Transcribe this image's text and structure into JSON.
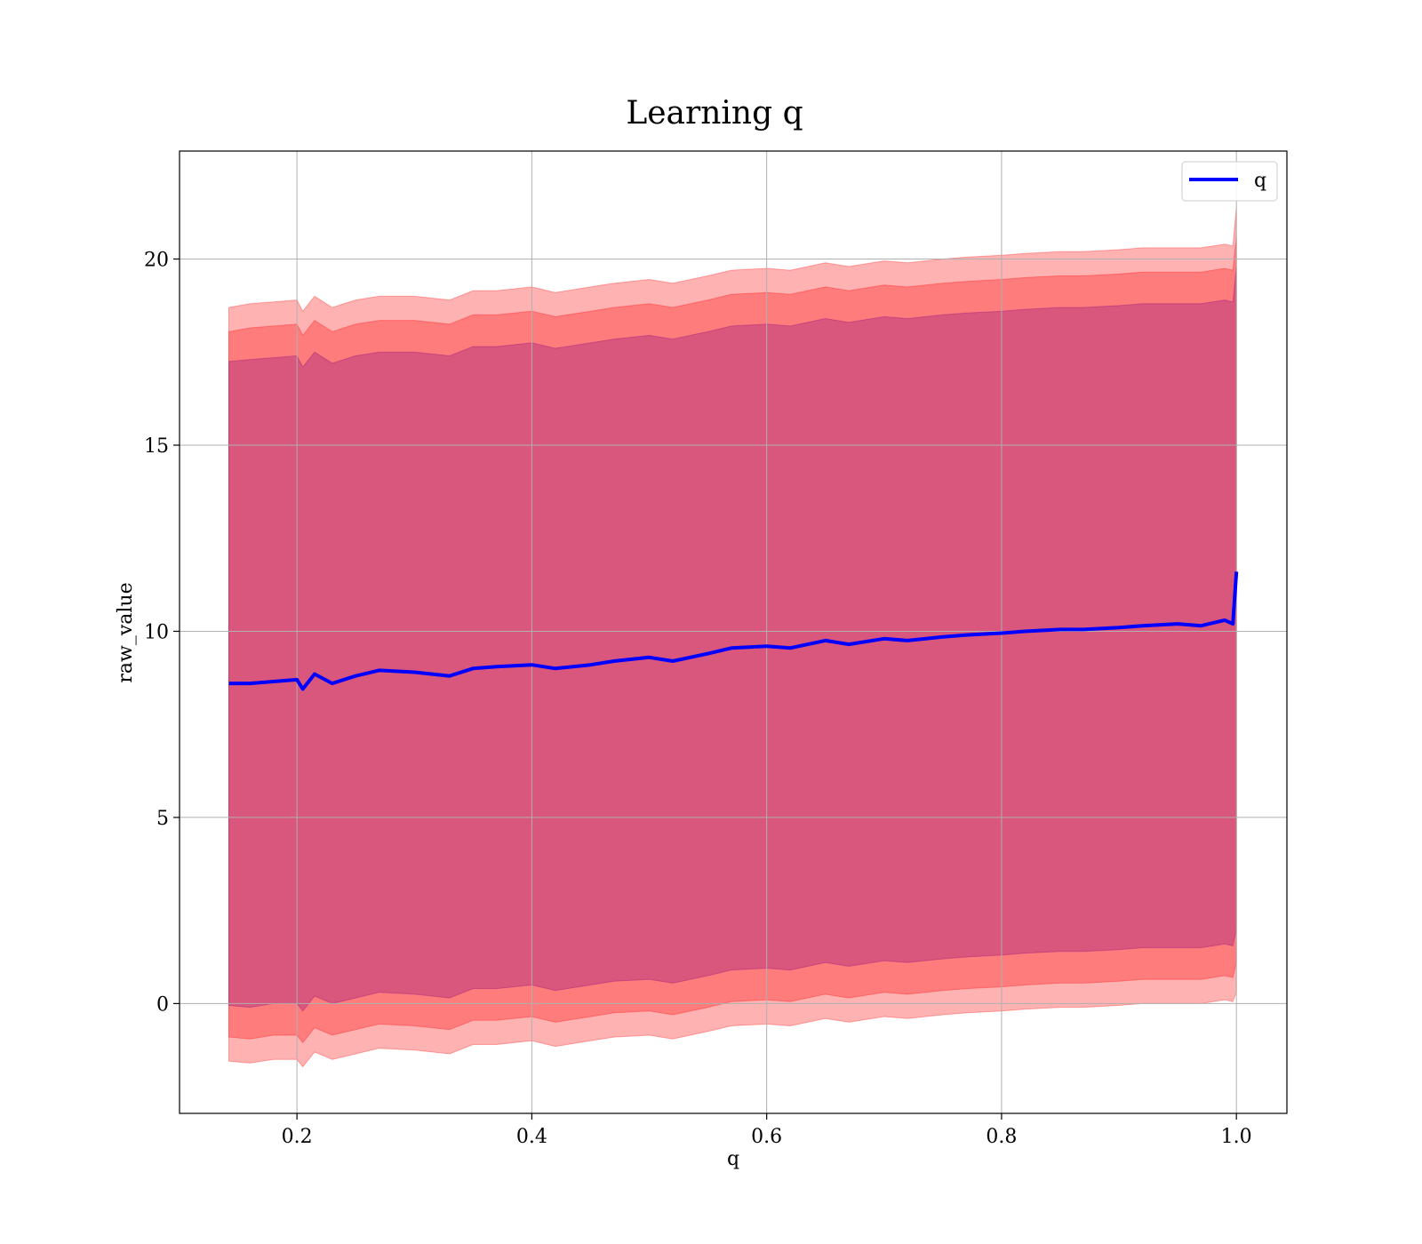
{
  "chart_data": {
    "type": "area",
    "title": "Learning q",
    "xlabel": "q",
    "ylabel": "raw_value",
    "xlim": [
      0.1,
      1.043
    ],
    "ylim": [
      -2.95,
      22.9
    ],
    "xticks": [
      0.2,
      0.4,
      0.6,
      0.8,
      1.0
    ],
    "xtick_labels": [
      "0.2",
      "0.4",
      "0.6",
      "0.8",
      "1.0"
    ],
    "yticks": [
      0,
      5,
      10,
      15,
      20
    ],
    "ytick_labels": [
      "0",
      "5",
      "10",
      "15",
      "20"
    ],
    "grid": true,
    "legend": {
      "position": "top-right",
      "entries": [
        "q"
      ]
    },
    "x": [
      0.142,
      0.16,
      0.18,
      0.2,
      0.205,
      0.215,
      0.23,
      0.25,
      0.27,
      0.3,
      0.33,
      0.35,
      0.37,
      0.4,
      0.42,
      0.45,
      0.47,
      0.5,
      0.52,
      0.55,
      0.57,
      0.6,
      0.62,
      0.65,
      0.67,
      0.7,
      0.72,
      0.75,
      0.77,
      0.8,
      0.82,
      0.85,
      0.87,
      0.9,
      0.92,
      0.95,
      0.97,
      0.99,
      0.997,
      1.0
    ],
    "series": [
      {
        "name": "q",
        "color": "#0000ff",
        "values": [
          8.6,
          8.6,
          8.65,
          8.7,
          8.45,
          8.85,
          8.6,
          8.8,
          8.95,
          8.9,
          8.8,
          9.0,
          9.05,
          9.1,
          9.0,
          9.1,
          9.2,
          9.3,
          9.2,
          9.4,
          9.55,
          9.6,
          9.55,
          9.75,
          9.65,
          9.8,
          9.75,
          9.85,
          9.9,
          9.95,
          10.0,
          10.05,
          10.05,
          10.1,
          10.15,
          10.2,
          10.15,
          10.3,
          10.2,
          11.6
        ]
      }
    ],
    "bands": [
      {
        "color": "#ff0000",
        "opacity": 0.3,
        "upper": [
          18.7,
          18.8,
          18.85,
          18.9,
          18.6,
          19.0,
          18.7,
          18.9,
          19.0,
          19.0,
          18.9,
          19.15,
          19.15,
          19.25,
          19.1,
          19.25,
          19.35,
          19.45,
          19.35,
          19.55,
          19.7,
          19.75,
          19.7,
          19.9,
          19.8,
          19.95,
          19.9,
          20.0,
          20.05,
          20.1,
          20.15,
          20.2,
          20.2,
          20.25,
          20.3,
          20.3,
          20.3,
          20.4,
          20.35,
          21.4
        ],
        "lower": [
          -1.55,
          -1.6,
          -1.5,
          -1.5,
          -1.7,
          -1.3,
          -1.5,
          -1.35,
          -1.2,
          -1.25,
          -1.35,
          -1.1,
          -1.1,
          -1.0,
          -1.15,
          -1.0,
          -0.9,
          -0.85,
          -0.95,
          -0.75,
          -0.6,
          -0.55,
          -0.6,
          -0.4,
          -0.5,
          -0.35,
          -0.4,
          -0.3,
          -0.25,
          -0.2,
          -0.15,
          -0.1,
          -0.1,
          -0.05,
          0.0,
          0.0,
          0.0,
          0.1,
          0.05,
          0.3
        ]
      },
      {
        "color": "#ff0000",
        "opacity": 0.3,
        "upper": [
          18.05,
          18.15,
          18.2,
          18.25,
          17.95,
          18.35,
          18.05,
          18.25,
          18.35,
          18.35,
          18.25,
          18.5,
          18.5,
          18.6,
          18.45,
          18.6,
          18.7,
          18.8,
          18.7,
          18.9,
          19.05,
          19.1,
          19.05,
          19.25,
          19.15,
          19.3,
          19.25,
          19.35,
          19.4,
          19.45,
          19.5,
          19.55,
          19.55,
          19.6,
          19.65,
          19.65,
          19.65,
          19.75,
          19.7,
          20.6
        ],
        "lower": [
          -0.9,
          -0.95,
          -0.85,
          -0.85,
          -1.05,
          -0.65,
          -0.85,
          -0.7,
          -0.55,
          -0.6,
          -0.7,
          -0.45,
          -0.45,
          -0.35,
          -0.5,
          -0.35,
          -0.25,
          -0.2,
          -0.3,
          -0.1,
          0.05,
          0.1,
          0.05,
          0.25,
          0.15,
          0.3,
          0.25,
          0.35,
          0.4,
          0.45,
          0.5,
          0.55,
          0.55,
          0.6,
          0.65,
          0.65,
          0.65,
          0.75,
          0.7,
          1.1
        ]
      },
      {
        "color": "#800080",
        "opacity": 0.3,
        "upper": [
          17.25,
          17.3,
          17.35,
          17.4,
          17.1,
          17.5,
          17.2,
          17.4,
          17.5,
          17.5,
          17.4,
          17.65,
          17.65,
          17.75,
          17.6,
          17.75,
          17.85,
          17.95,
          17.85,
          18.05,
          18.2,
          18.25,
          18.2,
          18.4,
          18.3,
          18.45,
          18.4,
          18.5,
          18.55,
          18.6,
          18.65,
          18.7,
          18.7,
          18.75,
          18.8,
          18.8,
          18.8,
          18.9,
          18.85,
          19.8
        ],
        "lower": [
          -0.05,
          -0.1,
          0.0,
          0.0,
          -0.2,
          0.2,
          0.0,
          0.15,
          0.3,
          0.25,
          0.15,
          0.4,
          0.4,
          0.5,
          0.35,
          0.5,
          0.6,
          0.65,
          0.55,
          0.75,
          0.9,
          0.95,
          0.9,
          1.1,
          1.0,
          1.15,
          1.1,
          1.2,
          1.25,
          1.3,
          1.35,
          1.4,
          1.4,
          1.45,
          1.5,
          1.5,
          1.5,
          1.6,
          1.55,
          2.0
        ]
      }
    ]
  }
}
